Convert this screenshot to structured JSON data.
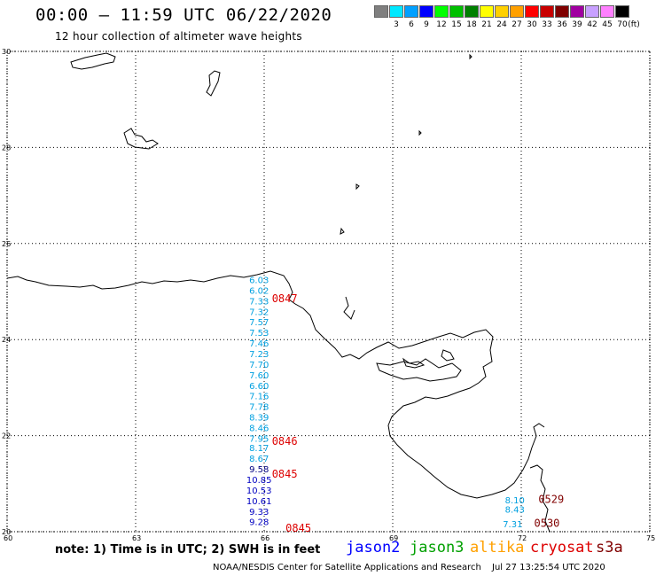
{
  "header": {
    "title": "00:00 – 11:59 UTC 06/22/2020",
    "subtitle": "12 hour collection of altimeter wave heights"
  },
  "color_scale": {
    "labels": [
      "3",
      "6",
      "9",
      "12",
      "15",
      "18",
      "21",
      "24",
      "27",
      "30",
      "33",
      "36",
      "39",
      "42",
      "45",
      "70"
    ],
    "unit": "(ft)",
    "colors": [
      "#7f7f7f",
      "#00e8ff",
      "#00a0ff",
      "#0000ff",
      "#00ff00",
      "#00c000",
      "#008000",
      "#ffff00",
      "#ffd000",
      "#ffa000",
      "#ff0000",
      "#c80000",
      "#800000",
      "#a000a0",
      "#c8a0ff",
      "#ff80ff",
      "#000000"
    ]
  },
  "axes": {
    "lat_labels": [
      "30",
      "28",
      "26",
      "24",
      "22",
      "20"
    ],
    "lon_labels": [
      "60",
      "63",
      "66",
      "69",
      "72",
      "75"
    ]
  },
  "map": {
    "region": "Arabian Sea / Gulf of Oman / Pakistan-India coast",
    "lat_range": [
      20,
      30
    ],
    "lon_range": [
      60,
      75
    ],
    "tracks": [
      {
        "satellite": "jason3",
        "time": "0847",
        "time_color": "#dd0000",
        "points": [
          {
            "lat": 25.23,
            "lon": 65.88,
            "swh": "6.03",
            "color": "#00a0e0"
          },
          {
            "lat": 25.01,
            "lon": 65.88,
            "swh": "6.02",
            "color": "#00a0e0"
          },
          {
            "lat": 24.79,
            "lon": 65.88,
            "swh": "7.33",
            "color": "#00a0e0"
          },
          {
            "lat": 24.57,
            "lon": 65.88,
            "swh": "7.32",
            "color": "#00a0e0"
          },
          {
            "lat": 24.35,
            "lon": 65.88,
            "swh": "7.57",
            "color": "#00a0e0"
          },
          {
            "lat": 24.13,
            "lon": 65.88,
            "swh": "7.53",
            "color": "#00a0e0"
          },
          {
            "lat": 23.91,
            "lon": 65.88,
            "swh": "7.46",
            "color": "#00a0e0"
          },
          {
            "lat": 23.69,
            "lon": 65.88,
            "swh": "7.23",
            "color": "#00a0e0"
          },
          {
            "lat": 23.47,
            "lon": 65.88,
            "swh": "7.70",
            "color": "#00a0e0"
          },
          {
            "lat": 23.25,
            "lon": 65.88,
            "swh": "7.60",
            "color": "#00a0e0"
          },
          {
            "lat": 23.03,
            "lon": 65.88,
            "swh": "6.60",
            "color": "#00a0e0"
          },
          {
            "lat": 22.81,
            "lon": 65.88,
            "swh": "7.16",
            "color": "#00a0e0"
          },
          {
            "lat": 22.59,
            "lon": 65.88,
            "swh": "7.78",
            "color": "#00a0e0"
          },
          {
            "lat": 22.37,
            "lon": 65.88,
            "swh": "8.39",
            "color": "#00a0e0"
          },
          {
            "lat": 22.15,
            "lon": 65.88,
            "swh": "8.46",
            "color": "#00a0e0"
          }
        ]
      },
      {
        "satellite": "jason3",
        "time": "0846",
        "time_color": "#dd0000",
        "points": [
          {
            "lat": 21.93,
            "lon": 65.88,
            "swh": "7.95",
            "color": "#00a0e0"
          },
          {
            "lat": 21.73,
            "lon": 65.88,
            "swh": "8.17",
            "color": "#00a0e0"
          },
          {
            "lat": 21.51,
            "lon": 65.88,
            "swh": "8.67",
            "color": "#00a0e0"
          }
        ]
      },
      {
        "satellite": "jason3",
        "time": "0845",
        "time_color": "#dd0000",
        "points": [
          {
            "lat": 21.29,
            "lon": 65.88,
            "swh": "9.58",
            "color": "#000080"
          },
          {
            "lat": 21.07,
            "lon": 65.88,
            "swh": "10.85",
            "color": "#0000c0"
          },
          {
            "lat": 20.85,
            "lon": 65.88,
            "swh": "10.53",
            "color": "#0000c0"
          },
          {
            "lat": 20.63,
            "lon": 65.88,
            "swh": "10.61",
            "color": "#0000c0"
          },
          {
            "lat": 20.41,
            "lon": 65.88,
            "swh": "9.33",
            "color": "#0000c0"
          },
          {
            "lat": 20.19,
            "lon": 65.88,
            "swh": "9.28",
            "color": "#0000c0"
          }
        ]
      },
      {
        "satellite": "cryosat",
        "time": "0845",
        "time_color": "#dd0000",
        "points": []
      },
      {
        "satellite": "s3a",
        "time": "0529",
        "time_color": "#800000",
        "points": [
          {
            "lat": 20.65,
            "lon": 71.85,
            "swh": "8.10",
            "color": "#00a0e0"
          },
          {
            "lat": 20.45,
            "lon": 71.85,
            "swh": "8.43",
            "color": "#00a0e0"
          },
          {
            "lat": 20.15,
            "lon": 71.8,
            "swh": "7.31",
            "color": "#00a0e0"
          }
        ]
      },
      {
        "satellite": "s3a",
        "time": "0530",
        "time_color": "#800000",
        "points": []
      }
    ]
  },
  "footer": {
    "note": "note: 1) Time is in UTC; 2) SWH is in feet",
    "legend": [
      {
        "name": "jason2",
        "color": "#0000ff"
      },
      {
        "name": "jason3",
        "color": "#00a000"
      },
      {
        "name": "altika",
        "color": "#ffa000"
      },
      {
        "name": "cryosat",
        "color": "#dd0000"
      },
      {
        "name": "s3a",
        "color": "#800000"
      }
    ],
    "credit": "NOAA/NESDIS Center for Satellite Applications and Research",
    "generated": "Jul 27 13:25:54 UTC 2020"
  }
}
